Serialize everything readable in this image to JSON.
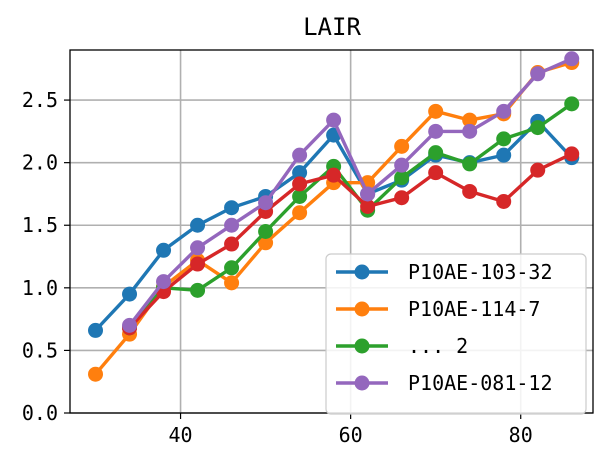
{
  "chart_data": {
    "type": "line",
    "title": "LAIR",
    "xlabel": "",
    "ylabel": "",
    "xlim": [
      27,
      88.5
    ],
    "ylim": [
      0,
      2.9
    ],
    "xticks": [
      "40",
      "60",
      "80"
    ],
    "xtick_values": [
      40,
      60,
      80
    ],
    "yticks": [
      "0.0",
      "0.5",
      "1.0",
      "1.5",
      "2.0",
      "2.5"
    ],
    "ytick_values": [
      0.0,
      0.5,
      1.0,
      1.5,
      2.0,
      2.5
    ],
    "grid": true,
    "legend_position": "lower-right",
    "series": [
      {
        "name": "P10AE-103-32",
        "color": "#1f77b4",
        "x": [
          30,
          34,
          38,
          42,
          46,
          50,
          54,
          58,
          62,
          66,
          70,
          74,
          78,
          82,
          86
        ],
        "y": [
          0.66,
          0.95,
          1.3,
          1.5,
          1.64,
          1.73,
          1.92,
          2.22,
          1.75,
          1.86,
          2.06,
          2.0,
          2.06,
          2.33,
          2.04
        ]
      },
      {
        "name": "P10AE-114-7",
        "color": "#ff7f0e",
        "x": [
          30,
          34,
          38,
          42,
          46,
          50,
          54,
          58,
          62,
          66,
          70,
          74,
          78,
          82,
          86
        ],
        "y": [
          0.31,
          0.63,
          1.01,
          1.22,
          1.04,
          1.36,
          1.6,
          1.84,
          1.84,
          2.13,
          2.41,
          2.34,
          2.39,
          2.72,
          2.8
        ]
      },
      {
        "name": "... 2",
        "color": "#2ca02c",
        "x": [
          34,
          38,
          42,
          46,
          50,
          54,
          58,
          62,
          66,
          70,
          74,
          78,
          82,
          86
        ],
        "y": [
          0.68,
          1.0,
          0.98,
          1.16,
          1.45,
          1.73,
          1.97,
          1.62,
          1.88,
          2.08,
          1.99,
          2.19,
          2.28,
          2.47
        ]
      },
      {
        "name": "",
        "color": "#d62728",
        "x": [
          34,
          38,
          42,
          46,
          50,
          54,
          58,
          62,
          66,
          70,
          74,
          78,
          82,
          86
        ],
        "y": [
          0.68,
          0.97,
          1.19,
          1.35,
          1.61,
          1.83,
          1.9,
          1.65,
          1.72,
          1.92,
          1.77,
          1.69,
          1.94,
          2.07
        ]
      },
      {
        "name": "P10AE-081-12",
        "color": "#9467bd",
        "x": [
          34,
          38,
          42,
          46,
          50,
          54,
          58,
          62,
          66,
          70,
          74,
          78,
          82,
          86
        ],
        "y": [
          0.7,
          1.05,
          1.32,
          1.5,
          1.68,
          2.06,
          2.34,
          1.75,
          1.98,
          2.25,
          2.25,
          2.41,
          2.71,
          2.83
        ]
      }
    ]
  }
}
